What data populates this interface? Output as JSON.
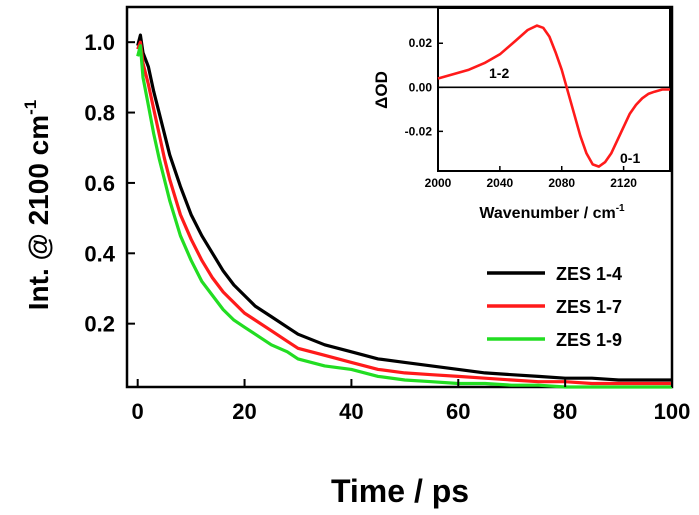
{
  "chart_data": [
    {
      "type": "line",
      "xlabel": "Time / ps",
      "ylabel": "Int. @ 2100 cm",
      "ylabel_superscript": "-1",
      "xlim": [
        -2,
        100
      ],
      "ylim": [
        0.02,
        1.1
      ],
      "xticks": [
        "0",
        "20",
        "40",
        "60",
        "80",
        "100"
      ],
      "yticks": [
        "0.2",
        "0.4",
        "0.6",
        "0.8",
        "1.0"
      ],
      "legend_position": "center-right",
      "series": [
        {
          "name": "ZES 1-4",
          "color": "#000000",
          "x": [
            0,
            0.5,
            1,
            2,
            3,
            4,
            5,
            6,
            8,
            10,
            12,
            14,
            16,
            18,
            20,
            22,
            25,
            28,
            30,
            35,
            40,
            45,
            50,
            55,
            60,
            65,
            70,
            75,
            80,
            85,
            90,
            95,
            100
          ],
          "y": [
            0.99,
            1.02,
            0.97,
            0.93,
            0.86,
            0.8,
            0.74,
            0.68,
            0.59,
            0.51,
            0.45,
            0.4,
            0.35,
            0.31,
            0.28,
            0.25,
            0.22,
            0.19,
            0.17,
            0.14,
            0.12,
            0.1,
            0.09,
            0.08,
            0.07,
            0.06,
            0.055,
            0.05,
            0.045,
            0.045,
            0.04,
            0.04,
            0.04
          ]
        },
        {
          "name": "ZES 1-7",
          "color": "#ff1a1a",
          "x": [
            0,
            0.5,
            1,
            2,
            3,
            4,
            5,
            6,
            8,
            10,
            12,
            14,
            16,
            18,
            20,
            22,
            25,
            28,
            30,
            35,
            40,
            45,
            50,
            55,
            60,
            65,
            70,
            75,
            80,
            85,
            90,
            95,
            100
          ],
          "y": [
            0.98,
            1.0,
            0.94,
            0.88,
            0.81,
            0.74,
            0.67,
            0.61,
            0.51,
            0.44,
            0.38,
            0.33,
            0.29,
            0.26,
            0.23,
            0.21,
            0.18,
            0.15,
            0.13,
            0.11,
            0.09,
            0.07,
            0.06,
            0.055,
            0.05,
            0.045,
            0.04,
            0.035,
            0.035,
            0.03,
            0.03,
            0.03,
            0.03
          ]
        },
        {
          "name": "ZES 1-9",
          "color": "#22dd22",
          "x": [
            0,
            0.5,
            1,
            2,
            3,
            4,
            5,
            6,
            8,
            10,
            12,
            14,
            16,
            18,
            20,
            22,
            25,
            28,
            30,
            35,
            40,
            45,
            50,
            55,
            60,
            65,
            70,
            75,
            80,
            85,
            90,
            95,
            100
          ],
          "y": [
            0.96,
            0.99,
            0.9,
            0.82,
            0.74,
            0.67,
            0.61,
            0.55,
            0.45,
            0.38,
            0.32,
            0.28,
            0.24,
            0.21,
            0.19,
            0.17,
            0.14,
            0.12,
            0.1,
            0.08,
            0.07,
            0.05,
            0.04,
            0.035,
            0.03,
            0.03,
            0.025,
            0.025,
            0.02,
            0.02,
            0.02,
            0.02,
            0.02
          ]
        }
      ]
    },
    {
      "type": "line",
      "xlabel": "Wavenumber / cm",
      "xlabel_superscript": "-1",
      "ylabel": "ΔOD",
      "xlim": [
        2000,
        2150
      ],
      "ylim": [
        -0.038,
        0.036
      ],
      "xticks": [
        "2000",
        "2040",
        "2080",
        "2120"
      ],
      "yticks": [
        "0.02",
        "0.00",
        "-0.02"
      ],
      "zero_line": true,
      "annotations": [
        "1-2",
        "0-1"
      ],
      "series": [
        {
          "name": "ΔOD spectrum",
          "color": "#ff1a1a",
          "x": [
            2000,
            2010,
            2020,
            2030,
            2040,
            2050,
            2058,
            2064,
            2068,
            2072,
            2076,
            2080,
            2084,
            2088,
            2092,
            2096,
            2100,
            2104,
            2108,
            2112,
            2116,
            2120,
            2124,
            2128,
            2132,
            2136,
            2140,
            2145,
            2150
          ],
          "y": [
            0.004,
            0.006,
            0.008,
            0.011,
            0.015,
            0.021,
            0.026,
            0.028,
            0.027,
            0.023,
            0.016,
            0.008,
            -0.002,
            -0.012,
            -0.022,
            -0.03,
            -0.035,
            -0.036,
            -0.034,
            -0.03,
            -0.024,
            -0.018,
            -0.012,
            -0.008,
            -0.005,
            -0.003,
            -0.002,
            -0.001,
            -0.001
          ]
        }
      ]
    }
  ]
}
